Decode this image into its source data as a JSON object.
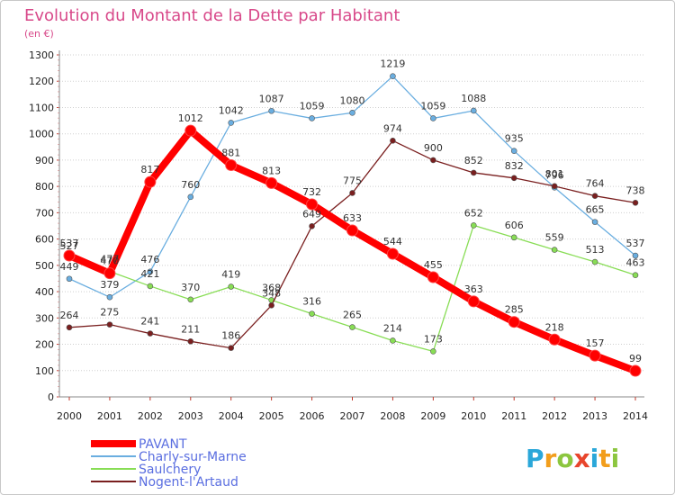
{
  "chart_data": {
    "type": "line",
    "title": "Evolution du Montant de la Dette par Habitant",
    "subtitle": "(en €)",
    "x": [
      "2000",
      "2001",
      "2002",
      "2003",
      "2004",
      "2005",
      "2006",
      "2007",
      "2008",
      "2009",
      "2010",
      "2011",
      "2012",
      "2013",
      "2014"
    ],
    "ylim": [
      0,
      1300
    ],
    "yticks": [
      0,
      100,
      200,
      300,
      400,
      500,
      600,
      700,
      800,
      900,
      1000,
      1100,
      1200,
      1300
    ],
    "grid": "horizontal-dotted",
    "legend_position": "bottom-left",
    "series": [
      {
        "name": "PAVANT",
        "color": "#ff0000",
        "emphasis": true,
        "values": [
          537,
          470,
          817,
          1012,
          881,
          813,
          732,
          633,
          544,
          455,
          363,
          285,
          218,
          157,
          99
        ]
      },
      {
        "name": "Charly-sur-Marne",
        "color": "#6aaee0",
        "values": [
          449,
          379,
          476,
          760,
          1042,
          1087,
          1059,
          1080,
          1219,
          1059,
          1088,
          935,
          796,
          665,
          537
        ]
      },
      {
        "name": "Saulchery",
        "color": "#88dd55",
        "values": [
          527,
          477,
          421,
          370,
          419,
          368,
          316,
          265,
          214,
          173,
          652,
          606,
          559,
          513,
          463
        ]
      },
      {
        "name": "Nogent-l'Artaud",
        "color": "#7a1f1f",
        "values": [
          264,
          275,
          241,
          211,
          186,
          348,
          649,
          775,
          974,
          900,
          852,
          832,
          801,
          764,
          738
        ]
      }
    ]
  },
  "logo": {
    "text": "Proxiti",
    "colors": [
      "#2aa7d9",
      "#f29e1c",
      "#8cc63f",
      "#e8452c",
      "#2aa7d9",
      "#f29e1c",
      "#8cc63f"
    ]
  }
}
